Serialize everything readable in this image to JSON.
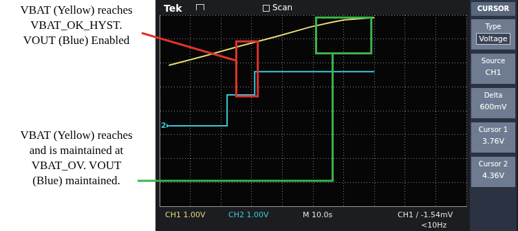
{
  "chart_data": {
    "type": "line",
    "series": [
      {
        "name": "CH1",
        "color": "#e6dc78",
        "x": [
          0.3,
          1.5,
          2.6,
          3.8,
          4.9,
          5.6,
          6.0,
          7.0
        ],
        "values": [
          5.9,
          6.3,
          6.7,
          7.1,
          7.5,
          7.7,
          7.8,
          7.9
        ]
      },
      {
        "name": "CH2",
        "color": "#3cc8dc",
        "x": [
          0.3,
          2.2,
          2.2,
          3.1,
          3.1,
          7.0
        ],
        "values": [
          3.37,
          3.37,
          4.66,
          4.66,
          5.63,
          5.63
        ]
      }
    ],
    "xlim": [
      0,
      10
    ],
    "ylim": [
      0,
      8
    ],
    "xticks": [
      0,
      1,
      2,
      3,
      4,
      5,
      6,
      7,
      8,
      9,
      10
    ],
    "yticks": [
      0,
      1,
      2,
      3,
      4,
      5,
      6,
      7,
      8
    ],
    "grid": true,
    "tick_labels": false,
    "channel_markers": [
      {
        "label": "2",
        "series": "CH2",
        "value": 3.37
      }
    ],
    "annotations": [
      {
        "lines": [
          "VBAT (Yellow) reaches",
          "VBAT_OK_HYST.",
          "VOUT (Blue) Enabled"
        ],
        "color": "#e0322a",
        "box_x": [
          2.5,
          3.2
        ],
        "box_y": [
          4.6,
          6.9
        ]
      },
      {
        "lines": [
          "VBAT (Yellow) reaches",
          "and is maintained at",
          "VBAT_OV. VOUT",
          "(Blue) maintained."
        ],
        "color": "#3bb54a",
        "box_x": [
          5.1,
          6.9
        ],
        "box_y": [
          6.4,
          7.9
        ]
      }
    ]
  },
  "screen": {
    "header": [
      "Tek",
      "Scan"
    ],
    "footer": [
      "CH1 1.00V",
      "CH2 1.00V",
      "M 10.0s",
      "CH1 ∕ -1.54mV",
      "<10Hz"
    ],
    "menu": {
      "title": "CURSOR",
      "items": [
        {
          "label": "Type",
          "value": "Voltage"
        },
        {
          "label": "Source",
          "value": "CH1"
        },
        {
          "label": "Delta",
          "value": "600mV"
        },
        {
          "label": "Cursor 1",
          "value": "3.76V"
        },
        {
          "label": "Cursor 2",
          "value": "4.36V"
        }
      ]
    }
  }
}
